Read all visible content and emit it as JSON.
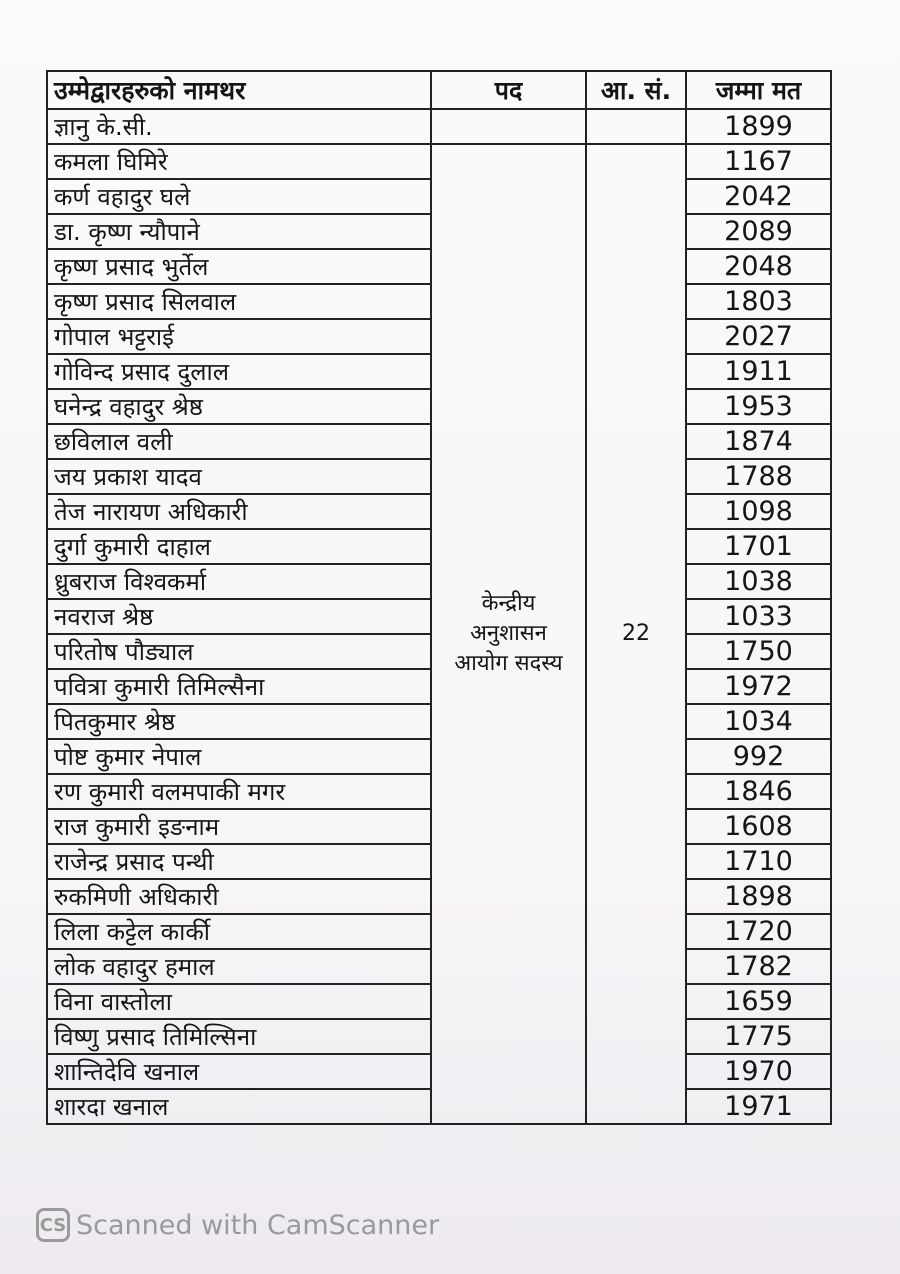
{
  "table": {
    "columns": [
      "उम्मेद्वारहरुको नामथर",
      "पद",
      "आ. सं.",
      "जम्मा मत"
    ],
    "rows": [
      {
        "name": "ज्ञानु के.सी.",
        "votes": 1899
      },
      {
        "name": "कमला घिमिरे",
        "votes": 1167
      },
      {
        "name": "कर्ण वहादुर घले",
        "votes": 2042
      },
      {
        "name": "डा. कृष्ण न्यौपाने",
        "votes": 2089
      },
      {
        "name": "कृष्ण प्रसाद भुर्तेल",
        "votes": 2048
      },
      {
        "name": "कृष्ण प्रसाद सिलवाल",
        "votes": 1803
      },
      {
        "name": "गोपाल भट्टराई",
        "votes": 2027
      },
      {
        "name": "गोविन्द प्रसाद दुलाल",
        "votes": 1911
      },
      {
        "name": "घनेन्द्र वहादुर श्रेष्ठ",
        "votes": 1953
      },
      {
        "name": "छविलाल वली",
        "votes": 1874
      },
      {
        "name": "जय प्रकाश यादव",
        "votes": 1788
      },
      {
        "name": "तेज नारायण अधिकारी",
        "votes": 1098
      },
      {
        "name": "दुर्गा कुमारी दाहाल",
        "votes": 1701
      },
      {
        "name": "ध्रुबराज विश्वकर्मा",
        "votes": 1038
      },
      {
        "name": "नवराज श्रेष्ठ",
        "votes": 1033
      },
      {
        "name": "परितोष पौड्याल",
        "votes": 1750
      },
      {
        "name": "पवित्रा कुमारी तिमिल्सैना",
        "votes": 1972
      },
      {
        "name": "पितकुमार श्रेष्ठ",
        "votes": 1034
      },
      {
        "name": "पोष्ट कुमार नेपाल",
        "votes": 992
      },
      {
        "name": "रण कुमारी वलमपाकी मगर",
        "votes": 1846
      },
      {
        "name": "राज कुमारी इङनाम",
        "votes": 1608
      },
      {
        "name": "राजेन्द्र प्रसाद पन्थी",
        "votes": 1710
      },
      {
        "name": "रुकमिणी अधिकारी",
        "votes": 1898
      },
      {
        "name": "लिला कट्टेल कार्की",
        "votes": 1720
      },
      {
        "name": "लोक वहादुर हमाल",
        "votes": 1782
      },
      {
        "name": "विना वास्तोला",
        "votes": 1659
      },
      {
        "name": "विष्णु प्रसाद तिमिल्सिना",
        "votes": 1775
      },
      {
        "name": "शान्तिदेवि खनाल",
        "votes": 1970
      },
      {
        "name": "शारदा खनाल",
        "votes": 1971
      }
    ],
    "post": [
      "केन्द्रीय",
      "अनुशासन",
      "आयोग सदस्य"
    ],
    "seat_number": 22
  },
  "footer": {
    "logo": "CS",
    "text": "Scanned with CamScanner"
  }
}
